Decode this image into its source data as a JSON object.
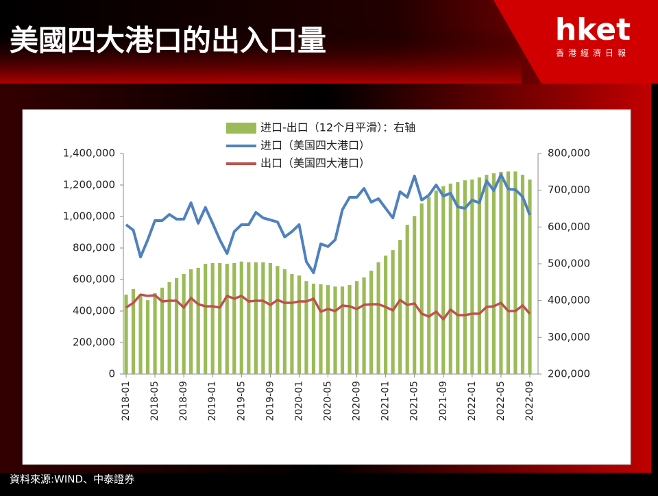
{
  "header": {
    "title": "美國四大港口的出入口量",
    "logo": "hket",
    "logo_subtitle": "香港經濟日報"
  },
  "source": "資料來源:WIND、中泰證券",
  "chart_data": {
    "type": "combo",
    "categories": [
      "2018-01",
      null,
      null,
      null,
      "2018-05",
      null,
      null,
      null,
      "2018-09",
      null,
      null,
      null,
      "2019-01",
      null,
      null,
      null,
      "2019-05",
      null,
      null,
      null,
      "2019-09",
      null,
      null,
      null,
      "2020-01",
      null,
      null,
      null,
      "2020-05",
      null,
      null,
      null,
      "2020-09",
      null,
      null,
      null,
      "2021-01",
      null,
      null,
      null,
      "2021-05",
      null,
      null,
      null,
      "2021-09",
      null,
      null,
      null,
      "2022-01",
      null,
      null,
      null,
      "2022-05",
      null,
      null,
      null,
      "2022-09"
    ],
    "series": [
      {
        "name": "进口-出口（12个月平滑）：右轴",
        "type": "bar",
        "axis": "y2",
        "color": "#9bbb59",
        "values": [
          416000,
          431000,
          412000,
          401000,
          420000,
          435000,
          450000,
          461000,
          472000,
          485000,
          489000,
          500000,
          502000,
          502000,
          500000,
          502000,
          506000,
          504000,
          504000,
          504000,
          502000,
          494000,
          485000,
          472000,
          468000,
          453000,
          446000,
          444000,
          442000,
          438000,
          438000,
          442000,
          453000,
          463000,
          481000,
          504000,
          522000,
          537000,
          565000,
          606000,
          630000,
          664000,
          681000,
          699000,
          711000,
          718000,
          722000,
          727000,
          729000,
          735000,
          742000,
          746000,
          750000,
          751000,
          751000,
          742000,
          729000
        ]
      },
      {
        "name": "进口（美国四大港口）",
        "type": "line",
        "color": "#4f81bd",
        "values": [
          948000,
          913000,
          743000,
          852000,
          974000,
          974000,
          1013000,
          983000,
          983000,
          1087000,
          957000,
          1057000,
          957000,
          852000,
          765000,
          904000,
          948000,
          948000,
          1026000,
          991000,
          978000,
          965000,
          870000,
          904000,
          948000,
          713000,
          643000,
          826000,
          809000,
          852000,
          1043000,
          1122000,
          1122000,
          1178000,
          1091000,
          1113000,
          1052000,
          991000,
          1157000,
          1122000,
          1257000,
          1104000,
          1135000,
          1200000,
          1130000,
          1148000,
          1061000,
          1052000,
          1104000,
          1087000,
          1226000,
          1165000,
          1265000,
          1174000,
          1170000,
          1126000,
          1009000
        ]
      },
      {
        "name": "出口（美国四大港口）",
        "type": "line",
        "color": "#c0504d",
        "values": [
          422000,
          452000,
          504000,
          496000,
          500000,
          461000,
          465000,
          465000,
          422000,
          483000,
          443000,
          430000,
          430000,
          422000,
          496000,
          478000,
          496000,
          461000,
          465000,
          465000,
          439000,
          470000,
          452000,
          452000,
          461000,
          461000,
          478000,
          396000,
          413000,
          400000,
          435000,
          430000,
          413000,
          439000,
          443000,
          443000,
          426000,
          404000,
          470000,
          439000,
          448000,
          383000,
          365000,
          396000,
          348000,
          409000,
          374000,
          374000,
          383000,
          383000,
          426000,
          430000,
          452000,
          400000,
          400000,
          435000,
          383000
        ]
      }
    ],
    "ylim": [
      0,
      1400000
    ],
    "yticks": [
      0,
      {
        "value": 200000,
        "label": "200,000"
      },
      {
        "value": 400000,
        "label": "400,000"
      },
      {
        "value": 600000,
        "label": "600,000"
      },
      {
        "value": 800000,
        "label": "800,000"
      },
      {
        "value": 1000000,
        "label": "1,000,000"
      },
      {
        "value": 1200000,
        "label": "1,200,000"
      },
      {
        "value": 1400000,
        "label": "1,400,000"
      }
    ],
    "y2lim": [
      200000,
      800000
    ],
    "y2ticks": [
      {
        "value": 200000,
        "label": "200,000"
      },
      {
        "value": 300000,
        "label": "300,000"
      },
      {
        "value": 400000,
        "label": "400,000"
      },
      {
        "value": 500000,
        "label": "500,000"
      },
      {
        "value": 600000,
        "label": "600,000"
      },
      {
        "value": 700000,
        "label": "700,000"
      },
      {
        "value": 800000,
        "label": "800,000"
      }
    ]
  }
}
